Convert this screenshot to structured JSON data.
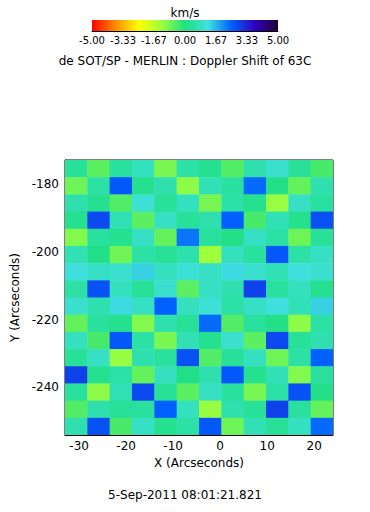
{
  "chart_data": {
    "type": "heatmap",
    "title": "de SOT/SP - MERLIN : Doppler Shift of 63C",
    "subtitle": "5-Sep-2011 08:01:21.821",
    "x_label": "X (Arcseconds)",
    "y_label": "Y (Arcseconds)",
    "xlim": [
      -33,
      24
    ],
    "ylim": [
      -254,
      -173
    ],
    "xticks": [
      -30,
      -20,
      -10,
      0,
      10,
      20
    ],
    "yticks": [
      -240,
      -220,
      -200,
      -180
    ],
    "x": [
      -30.63,
      -25.88,
      -21.13,
      -16.38,
      -11.63,
      -6.88,
      -2.13,
      2.63,
      7.38,
      12.13,
      16.88,
      21.63
    ],
    "y": [
      -175.53,
      -180.59,
      -185.66,
      -190.72,
      -195.78,
      -200.84,
      -205.91,
      -210.97,
      -216.03,
      -221.09,
      -226.16,
      -231.22,
      -236.28,
      -241.34,
      -246.41,
      -251.47
    ],
    "values": [
      [
        0.3,
        -0.6,
        0.4,
        0.8,
        -0.9,
        0.5,
        0.2,
        -0.5,
        0.6,
        1.0,
        0.3,
        -0.4
      ],
      [
        -0.8,
        0.5,
        2.6,
        0.2,
        0.6,
        -1.1,
        0.7,
        0.4,
        2.4,
        0.1,
        -0.7,
        0.6
      ],
      [
        0.6,
        0.2,
        -0.5,
        1.1,
        0.3,
        0.8,
        -0.9,
        0.5,
        0.2,
        -1.2,
        0.9,
        0.4
      ],
      [
        0.2,
        2.8,
        0.7,
        -0.6,
        0.9,
        0.3,
        0.6,
        2.5,
        -0.4,
        0.7,
        0.2,
        2.7
      ],
      [
        -1.0,
        0.4,
        0.2,
        0.9,
        -0.7,
        2.3,
        0.4,
        0.1,
        0.9,
        0.5,
        -0.8,
        0.3
      ],
      [
        0.7,
        0.1,
        -0.8,
        0.5,
        0.3,
        0.6,
        -1.3,
        0.8,
        0.4,
        2.6,
        0.5,
        0.9
      ],
      [
        1.2,
        0.9,
        1.0,
        1.4,
        0.8,
        1.1,
        0.9,
        1.3,
        1.0,
        0.7,
        1.2,
        1.0
      ],
      [
        0.5,
        2.7,
        0.8,
        0.3,
        1.0,
        -0.6,
        0.9,
        0.6,
        2.9,
        0.4,
        0.8,
        0.2
      ],
      [
        1.0,
        0.6,
        1.3,
        0.9,
        2.5,
        0.8,
        1.1,
        0.5,
        0.9,
        1.2,
        0.7,
        1.4
      ],
      [
        -0.7,
        0.4,
        0.2,
        -1.0,
        0.6,
        0.3,
        2.4,
        -0.5,
        0.4,
        0.1,
        -1.1,
        0.5
      ],
      [
        0.8,
        -0.4,
        2.6,
        0.5,
        -0.9,
        0.7,
        0.2,
        1.0,
        -0.6,
        2.8,
        0.3,
        0.6
      ],
      [
        0.3,
        0.9,
        -1.2,
        0.6,
        0.4,
        2.7,
        -0.5,
        0.3,
        0.8,
        -0.8,
        0.5,
        2.5
      ],
      [
        2.9,
        0.2,
        0.5,
        -0.7,
        0.8,
        0.1,
        0.6,
        2.6,
        0.2,
        0.7,
        -1.0,
        0.4
      ],
      [
        0.4,
        -1.1,
        0.7,
        2.8,
        0.3,
        -0.6,
        0.9,
        0.4,
        -0.9,
        0.5,
        2.7,
        0.1
      ],
      [
        -0.5,
        0.6,
        0.3,
        0.4,
        2.5,
        0.8,
        -1.2,
        0.6,
        0.3,
        2.9,
        0.4,
        -0.7
      ],
      [
        0.6,
        2.7,
        -0.4,
        0.9,
        0.2,
        0.5,
        2.6,
        -0.8,
        0.7,
        0.3,
        0.8,
        2.4
      ]
    ],
    "colorbar": {
      "title": "km/s",
      "range": [
        -5,
        5
      ],
      "ticks": [
        {
          "value": -5,
          "label": "-5.00"
        },
        -3.33,
        -1.67,
        {
          "value": 0,
          "label": "0.00"
        },
        1.67,
        3.33,
        {
          "value": 5,
          "label": "5.00"
        }
      ],
      "colors": [
        "#ff0000",
        "#ff8a00",
        "#ffff00",
        "#9cff40",
        "#20e080",
        "#40e0e0",
        "#0060ff",
        "#3000c0",
        "#200030"
      ]
    }
  }
}
